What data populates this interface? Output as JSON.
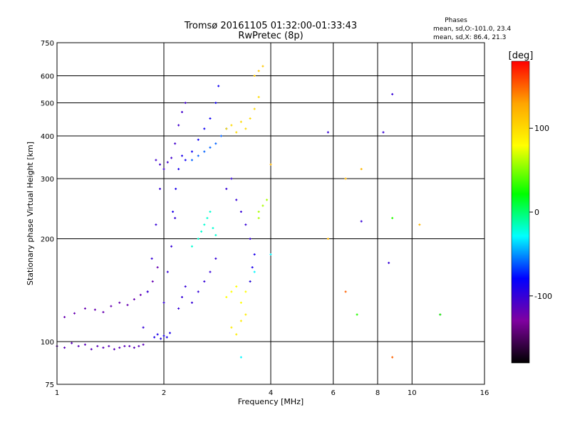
{
  "chart_data": {
    "type": "scatter",
    "title": "Tromsø 20161105 01:32:00-01:33:43",
    "subtitle": "RwPretec (8p)",
    "xlabel": "Frequency [MHz]",
    "ylabel": "Stationary phase Virtual Height [km]",
    "x_scale": "log",
    "y_scale": "log",
    "xlim": [
      1,
      16
    ],
    "ylim": [
      75,
      750
    ],
    "x_ticks": [
      1,
      2,
      4,
      6,
      8,
      10,
      16
    ],
    "y_ticks": [
      75,
      100,
      200,
      300,
      400,
      500,
      600,
      750
    ],
    "grid": true,
    "phases": {
      "title": "Phases",
      "line_o": "mean, sd,O:-101.0, 23.4",
      "line_x": "mean, sd,X:  86.4, 21.3"
    },
    "colorbar": {
      "label": "[deg]",
      "range": [
        -180,
        180
      ],
      "ticks": [
        100,
        0,
        -100
      ],
      "colors": [
        "#ff0000",
        "#ffa500",
        "#ffff00",
        "#00ff00",
        "#00ffff",
        "#0000ff",
        "#8000a0",
        "#000000"
      ]
    },
    "series": [
      {
        "phase": -115,
        "x": [
          1.0,
          1.05,
          1.1,
          1.15,
          1.2,
          1.25,
          1.3,
          1.35,
          1.4,
          1.45,
          1.5,
          1.55,
          1.6,
          1.65,
          1.7,
          1.75
        ],
        "y": [
          97,
          96,
          99,
          97,
          98,
          95,
          97,
          96,
          97,
          95,
          96,
          97,
          97,
          96,
          97,
          98
        ]
      },
      {
        "phase": -120,
        "x": [
          1.05,
          1.12,
          1.2,
          1.28,
          1.35,
          1.42,
          1.5,
          1.58,
          1.65,
          1.72,
          1.8,
          1.86,
          1.92
        ],
        "y": [
          118,
          121,
          125,
          124,
          122,
          127,
          130,
          128,
          133,
          137,
          140,
          150,
          165
        ]
      },
      {
        "phase": -100,
        "x": [
          1.75,
          1.8,
          1.85,
          1.9,
          1.95,
          2.0,
          2.05,
          2.1,
          2.15,
          2.2,
          2.25,
          2.3,
          2.4,
          2.5,
          2.6,
          2.7,
          2.8
        ],
        "y": [
          110,
          140,
          175,
          220,
          280,
          130,
          160,
          190,
          230,
          125,
          135,
          145,
          130,
          140,
          150,
          160,
          175
        ]
      },
      {
        "phase": -90,
        "x": [
          1.88,
          1.92,
          1.96,
          2.0,
          2.04,
          2.08,
          2.12,
          2.16,
          2.2,
          2.25
        ],
        "y": [
          103,
          105,
          102,
          104,
          103,
          106,
          240,
          280,
          320,
          350
        ]
      },
      {
        "phase": -105,
        "x": [
          1.9,
          1.95,
          2.0,
          2.05,
          2.1,
          2.15,
          2.2,
          2.25,
          2.3
        ],
        "y": [
          340,
          330,
          320,
          335,
          345,
          380,
          430,
          470,
          500
        ]
      },
      {
        "phase": -85,
        "x": [
          2.3,
          2.4,
          2.5,
          2.6,
          2.7,
          2.8,
          2.85
        ],
        "y": [
          340,
          360,
          390,
          420,
          450,
          500,
          560
        ]
      },
      {
        "phase": -60,
        "x": [
          2.4,
          2.5,
          2.6,
          2.7,
          2.8,
          2.9,
          3.0
        ],
        "y": [
          340,
          350,
          360,
          370,
          380,
          400,
          420
        ]
      },
      {
        "phase": -20,
        "x": [
          2.4,
          2.5,
          2.55,
          2.6,
          2.65,
          2.7,
          2.75,
          2.8
        ],
        "y": [
          190,
          200,
          210,
          220,
          230,
          240,
          215,
          205
        ]
      },
      {
        "phase": -100,
        "x": [
          3.0,
          3.1,
          3.2,
          3.3,
          3.4,
          3.5
        ],
        "y": [
          280,
          300,
          260,
          240,
          220,
          200
        ]
      },
      {
        "phase": 80,
        "x": [
          3.0,
          3.1,
          3.2,
          3.3,
          3.4,
          3.5
        ],
        "y": [
          135,
          140,
          145,
          130,
          140,
          150
        ]
      },
      {
        "phase": 100,
        "x": [
          3.0,
          3.1,
          3.2,
          3.3,
          3.4,
          3.5,
          3.6,
          3.7
        ],
        "y": [
          420,
          430,
          410,
          440,
          420,
          450,
          480,
          520
        ]
      },
      {
        "phase": 60,
        "x": [
          3.7,
          3.8,
          3.9,
          3.7
        ],
        "y": [
          240,
          250,
          260,
          230
        ]
      },
      {
        "phase": 90,
        "x": [
          3.1,
          3.2,
          3.3,
          3.4
        ],
        "y": [
          110,
          105,
          115,
          120
        ]
      },
      {
        "phase": -90,
        "x": [
          3.5,
          3.55,
          3.6
        ],
        "y": [
          150,
          165,
          180
        ]
      },
      {
        "phase": 110,
        "x": [
          3.6,
          3.7,
          3.8
        ],
        "y": [
          600,
          620,
          640
        ]
      },
      {
        "phase": -30,
        "x": [
          3.3,
          3.6,
          4.0
        ],
        "y": [
          90,
          160,
          180
        ]
      },
      {
        "phase": 120,
        "x": [
          4.0,
          5.8,
          6.5,
          7.2,
          10.5
        ],
        "y": [
          330,
          200,
          300,
          320,
          220
        ]
      },
      {
        "phase": -100,
        "x": [
          5.8,
          7.2,
          8.3,
          8.6,
          8.8,
          12.0
        ],
        "y": [
          410,
          225,
          410,
          170,
          530,
          120
        ]
      },
      {
        "phase": 150,
        "x": [
          6.5,
          8.8
        ],
        "y": [
          140,
          90
        ]
      },
      {
        "phase": 30,
        "x": [
          8.8,
          7.0,
          12.0
        ],
        "y": [
          230,
          120,
          120
        ]
      }
    ]
  }
}
